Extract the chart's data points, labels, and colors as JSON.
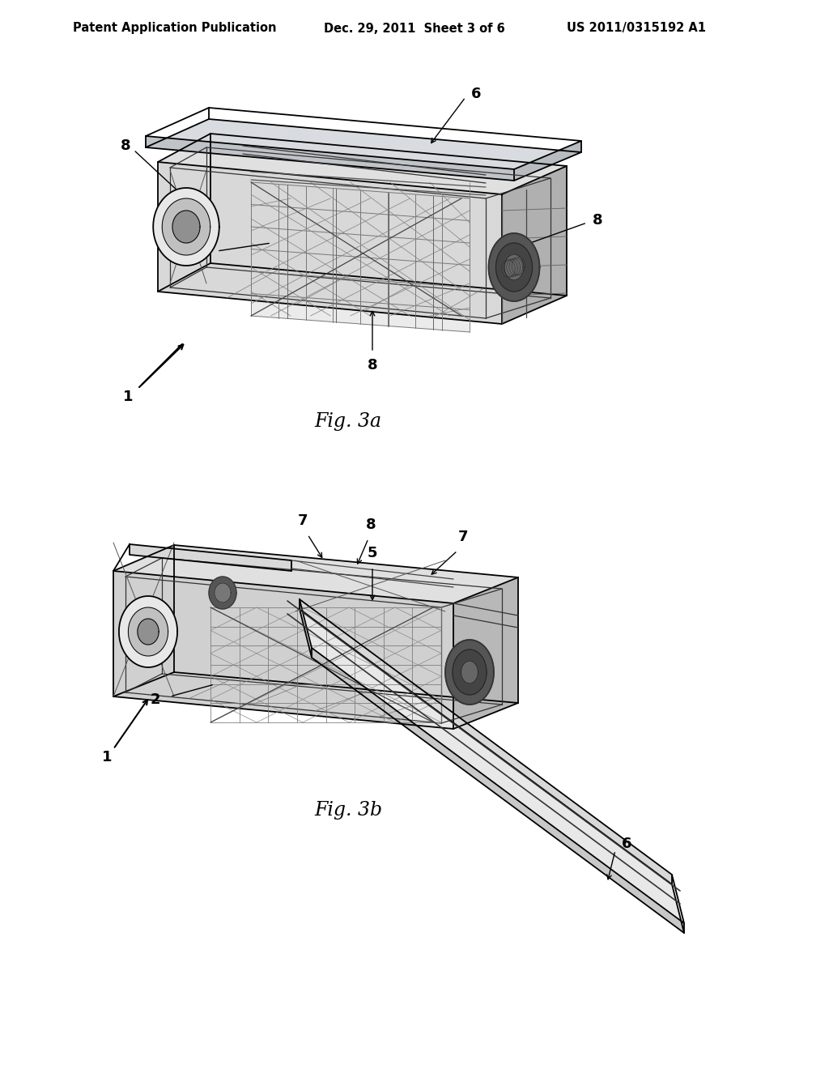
{
  "background_color": "#ffffff",
  "header_left": "Patent Application Publication",
  "header_center": "Dec. 29, 2011  Sheet 3 of 6",
  "header_right": "US 2011/0315192 A1",
  "fig3a_label": "Fig. 3a",
  "fig3b_label": "Fig. 3b",
  "draw_color": "#000000",
  "gray1": "#888888",
  "gray2": "#aaaaaa",
  "gray3": "#cccccc",
  "gray_fill": "#d0d0d0",
  "gray_fill2": "#e8e8e8",
  "gray_fill3": "#b8b8b8",
  "header_fontsize": 10.5,
  "label_fontsize": 17,
  "annot_fontsize": 13,
  "lw_main": 1.3,
  "lw_thin": 0.7,
  "lw_strut": 0.9
}
